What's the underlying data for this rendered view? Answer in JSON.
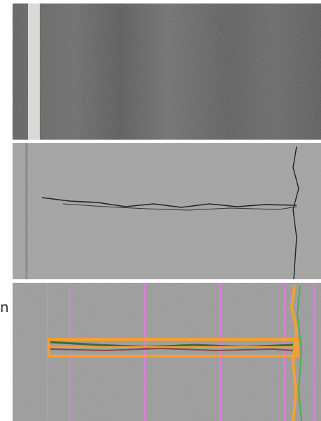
{
  "margin_text": "n"
}
